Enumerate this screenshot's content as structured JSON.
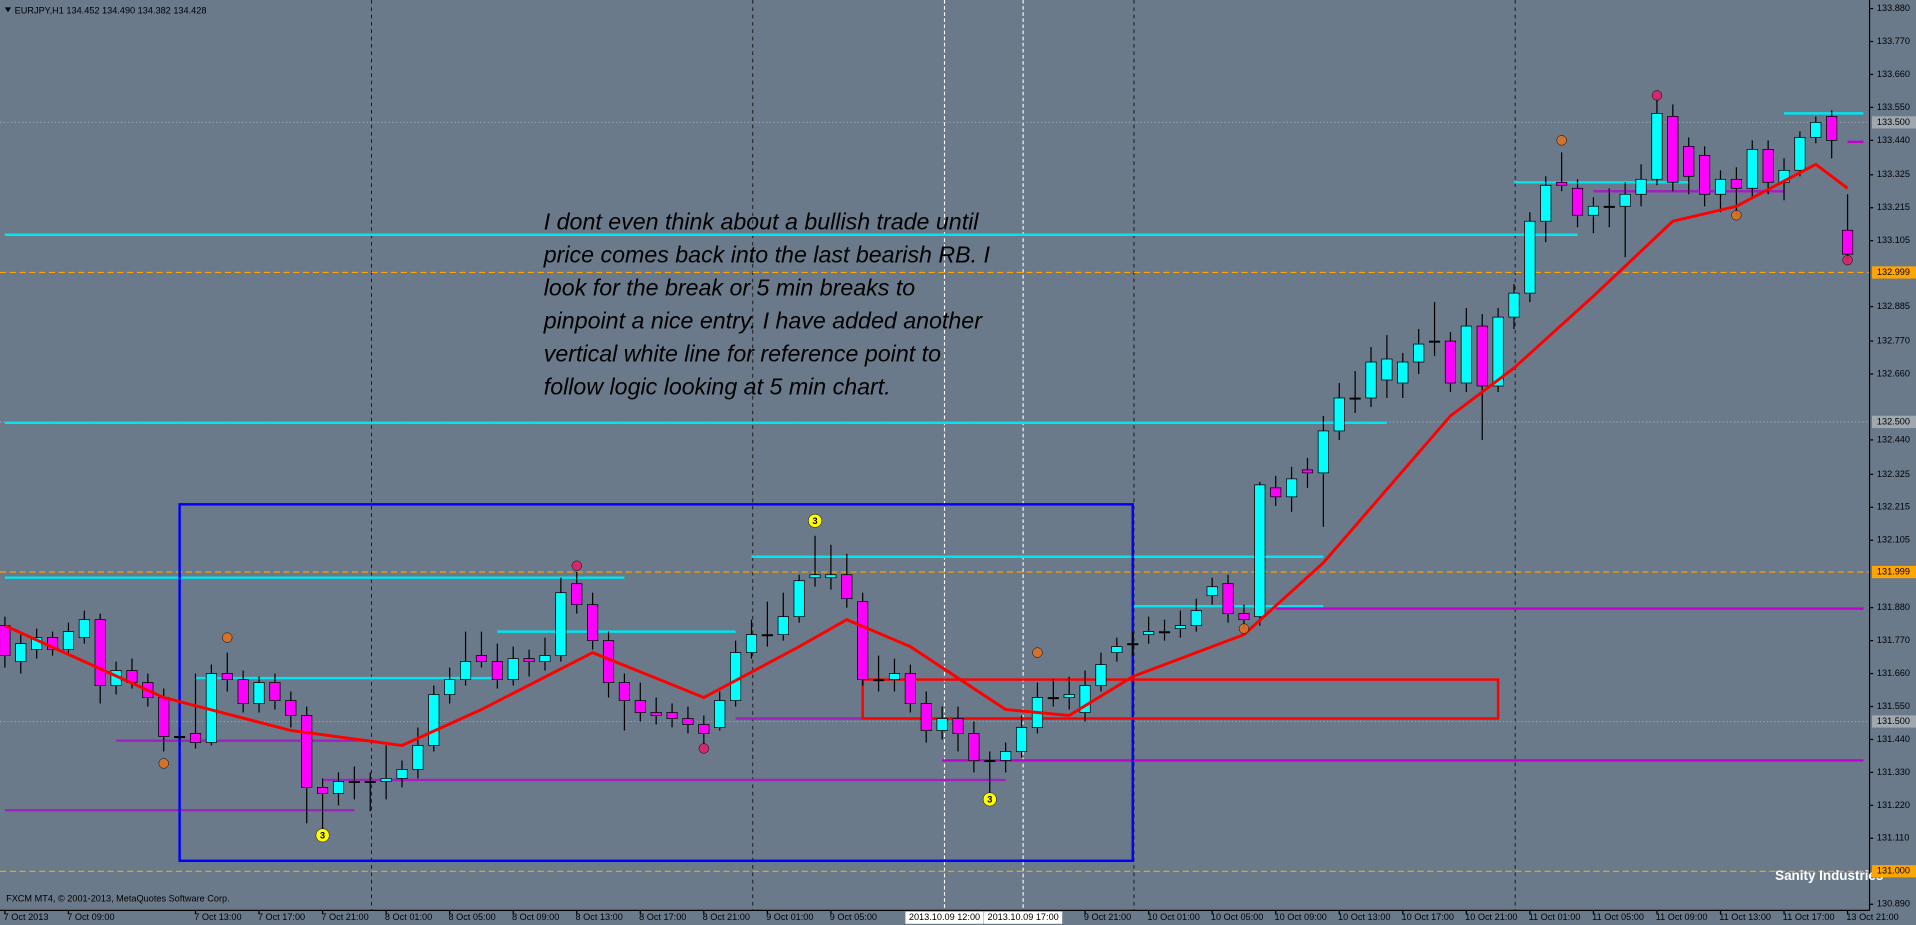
{
  "chart_data": {
    "type": "candlestick",
    "header": "EURJPY,H1 134.452 134.490 134.382 134.428",
    "footer": "FXCM MT4, © 2001-2013, MetaQuotes Software Corp.",
    "watermark": "Sanity Industries",
    "annotation": [
      "I dont even think about a bullish trade until",
      "price comes back into the last bearish RB. I",
      "look for the break or 5 min breaks to",
      "pinpoint a nice entry. I have added another",
      "vertical white line for reference point to",
      "follow logic looking at 5 min chart."
    ],
    "up_color": "#00ffff",
    "down_color": "#ff00ff",
    "xlim": [
      0,
      116
    ],
    "ylim": [
      130.89,
      133.88
    ],
    "yticks": [
      {
        "value": 133.88,
        "label": "133.880"
      },
      {
        "value": 133.77,
        "label": "133.770"
      },
      {
        "value": 133.66,
        "label": "133.660"
      },
      {
        "value": 133.55,
        "label": "133.550"
      },
      {
        "value": 133.44,
        "label": "133.440"
      },
      133.325,
      133.215,
      133.105,
      132.885,
      {
        "value": 132.77,
        "label": "132.770"
      },
      {
        "value": 132.66,
        "label": "132.660"
      },
      {
        "value": 132.44,
        "label": "132.440"
      },
      132.325,
      132.215,
      132.105,
      {
        "value": 131.88,
        "label": "131.880"
      },
      {
        "value": 131.77,
        "label": "131.770"
      },
      {
        "value": 131.66,
        "label": "131.660"
      },
      {
        "value": 131.55,
        "label": "131.550"
      },
      {
        "value": 131.44,
        "label": "131.440"
      },
      {
        "value": 131.33,
        "label": "131.330"
      },
      {
        "value": 131.22,
        "label": "131.220"
      },
      {
        "value": 131.11,
        "label": "131.110"
      },
      {
        "value": 130.89,
        "label": "130.890"
      }
    ],
    "xticks": [
      {
        "value": 0,
        "label": "7 Oct 2013"
      },
      {
        "value": 4,
        "label": "7 Oct 09:00"
      },
      {
        "value": 12,
        "label": "7 Oct 13:00"
      },
      {
        "value": 16,
        "label": "7 Oct 17:00"
      },
      {
        "value": 20,
        "label": "7 Oct 21:00"
      },
      {
        "value": 24,
        "label": "8 Oct 01:00"
      },
      {
        "value": 28,
        "label": "8 Oct 05:00"
      },
      {
        "value": 32,
        "label": "8 Oct 09:00"
      },
      {
        "value": 36,
        "label": "8 Oct 13:00"
      },
      {
        "value": 40,
        "label": "8 Oct 17:00"
      },
      {
        "value": 44,
        "label": "8 Oct 21:00"
      },
      {
        "value": 48,
        "label": "9 Oct 01:00"
      },
      {
        "value": 52,
        "label": "9 Oct 05:00"
      },
      {
        "value": 68,
        "label": "9 Oct 21:00"
      },
      {
        "value": 72,
        "label": "10 Oct 01:00"
      },
      {
        "value": 76,
        "label": "10 Oct 05:00"
      },
      {
        "value": 80,
        "label": "10 Oct 09:00"
      },
      {
        "value": 84,
        "label": "10 Oct 13:00"
      },
      {
        "value": 88,
        "label": "10 Oct 17:00"
      },
      {
        "value": 92,
        "label": "10 Oct 21:00"
      },
      {
        "value": 96,
        "label": "11 Oct 01:00"
      },
      {
        "value": 100,
        "label": "11 Oct 05:00"
      },
      {
        "value": 104,
        "label": "11 Oct 09:00"
      },
      {
        "value": 108,
        "label": "11 Oct 13:00"
      },
      {
        "value": 112,
        "label": "11 Oct 17:00"
      },
      {
        "value": 116,
        "label": "13 Oct 21:00"
      }
    ],
    "day_breaks": [
      23,
      47,
      71,
      95
    ],
    "reference_lines": [
      {
        "value": 59.15,
        "label": "2013.10.09 12:00"
      },
      {
        "value": 64.1,
        "label": "2013.10.09 17:00"
      }
    ],
    "candles": [
      [
        131.82,
        131.85,
        131.68,
        131.72
      ],
      [
        131.7,
        131.79,
        131.66,
        131.76
      ],
      [
        131.74,
        131.81,
        131.71,
        131.78
      ],
      [
        131.78,
        131.8,
        131.72,
        131.74
      ],
      [
        131.74,
        131.83,
        131.72,
        131.8
      ],
      [
        131.78,
        131.87,
        131.76,
        131.84
      ],
      [
        131.84,
        131.86,
        131.56,
        131.62
      ],
      [
        131.62,
        131.7,
        131.59,
        131.67
      ],
      [
        131.67,
        131.71,
        131.61,
        131.63
      ],
      [
        131.63,
        131.66,
        131.55,
        131.58
      ],
      [
        131.58,
        131.61,
        131.4,
        131.45
      ],
      [
        131.45,
        131.48,
        131.42,
        131.45
      ],
      [
        131.46,
        131.66,
        131.41,
        131.43
      ],
      [
        131.43,
        131.69,
        131.42,
        131.66
      ],
      [
        131.66,
        131.73,
        131.6,
        131.64
      ],
      [
        131.64,
        131.67,
        131.53,
        131.56
      ],
      [
        131.56,
        131.65,
        131.53,
        131.63
      ],
      [
        131.63,
        131.66,
        131.54,
        131.57
      ],
      [
        131.57,
        131.6,
        131.48,
        131.52
      ],
      [
        131.52,
        131.55,
        131.16,
        131.28
      ],
      [
        131.28,
        131.31,
        131.11,
        131.26
      ],
      [
        131.26,
        131.33,
        131.22,
        131.3
      ],
      [
        131.3,
        131.35,
        131.24,
        131.3
      ],
      [
        131.3,
        131.33,
        131.2,
        131.3
      ],
      [
        131.3,
        131.42,
        131.24,
        131.31
      ],
      [
        131.31,
        131.37,
        131.28,
        131.34
      ],
      [
        131.34,
        131.48,
        131.31,
        131.42
      ],
      [
        131.42,
        131.62,
        131.4,
        131.59
      ],
      [
        131.59,
        131.68,
        131.56,
        131.64
      ],
      [
        131.64,
        131.8,
        131.62,
        131.7
      ],
      [
        131.72,
        131.8,
        131.68,
        131.7
      ],
      [
        131.7,
        131.76,
        131.61,
        131.64
      ],
      [
        131.64,
        131.75,
        131.62,
        131.71
      ],
      [
        131.71,
        131.74,
        131.65,
        131.7
      ],
      [
        131.7,
        131.78,
        131.67,
        131.72
      ],
      [
        131.72,
        131.98,
        131.7,
        131.93
      ],
      [
        131.96,
        132.0,
        131.86,
        131.89
      ],
      [
        131.89,
        131.93,
        131.74,
        131.77
      ],
      [
        131.77,
        131.8,
        131.58,
        131.63
      ],
      [
        131.63,
        131.66,
        131.47,
        131.57
      ],
      [
        131.57,
        131.63,
        131.5,
        131.53
      ],
      [
        131.53,
        131.58,
        131.49,
        131.52
      ],
      [
        131.53,
        131.56,
        131.48,
        131.51
      ],
      [
        131.51,
        131.55,
        131.46,
        131.49
      ],
      [
        131.49,
        131.52,
        131.42,
        131.46
      ],
      [
        131.48,
        131.6,
        131.47,
        131.57
      ],
      [
        131.57,
        131.77,
        131.55,
        131.73
      ],
      [
        131.73,
        131.84,
        131.71,
        131.79
      ],
      [
        131.79,
        131.9,
        131.75,
        131.79
      ],
      [
        131.79,
        131.93,
        131.77,
        131.85
      ],
      [
        131.85,
        131.99,
        131.83,
        131.97
      ],
      [
        131.98,
        132.12,
        131.95,
        131.99
      ],
      [
        131.98,
        132.09,
        131.94,
        131.99
      ],
      [
        131.99,
        132.06,
        131.88,
        131.91
      ],
      [
        131.9,
        131.93,
        131.62,
        131.64
      ],
      [
        131.64,
        131.72,
        131.6,
        131.64
      ],
      [
        131.64,
        131.71,
        131.6,
        131.66
      ],
      [
        131.66,
        131.69,
        131.53,
        131.56
      ],
      [
        131.56,
        131.6,
        131.43,
        131.47
      ],
      [
        131.47,
        131.55,
        131.44,
        131.51
      ],
      [
        131.51,
        131.55,
        131.4,
        131.46
      ],
      [
        131.46,
        131.5,
        131.33,
        131.37
      ],
      [
        131.37,
        131.4,
        131.25,
        131.37
      ],
      [
        131.37,
        131.43,
        131.33,
        131.4
      ],
      [
        131.4,
        131.52,
        131.38,
        131.48
      ],
      [
        131.48,
        131.63,
        131.46,
        131.58
      ],
      [
        131.58,
        131.64,
        131.55,
        131.58
      ],
      [
        131.58,
        131.65,
        131.54,
        131.59
      ],
      [
        131.53,
        131.67,
        131.5,
        131.62
      ],
      [
        131.62,
        131.73,
        131.6,
        131.69
      ],
      [
        131.73,
        131.78,
        131.7,
        131.75
      ],
      [
        131.76,
        131.8,
        131.72,
        131.76
      ],
      [
        131.79,
        131.85,
        131.76,
        131.8
      ],
      [
        131.8,
        131.84,
        131.77,
        131.8
      ],
      [
        131.81,
        131.87,
        131.78,
        131.82
      ],
      [
        131.82,
        131.91,
        131.8,
        131.87
      ],
      [
        131.92,
        131.98,
        131.89,
        131.95
      ],
      [
        131.96,
        131.99,
        131.83,
        131.86
      ],
      [
        131.86,
        131.89,
        131.81,
        131.84
      ],
      [
        131.85,
        132.3,
        131.82,
        132.29
      ],
      [
        132.28,
        132.32,
        132.22,
        132.25
      ],
      [
        132.25,
        132.35,
        132.2,
        132.31
      ],
      [
        132.34,
        132.38,
        132.28,
        132.33
      ],
      [
        132.33,
        132.52,
        132.15,
        132.47
      ],
      [
        132.47,
        132.63,
        132.44,
        132.58
      ],
      [
        132.58,
        132.67,
        132.53,
        132.58
      ],
      [
        132.58,
        132.75,
        132.55,
        132.7
      ],
      [
        132.64,
        132.79,
        132.58,
        132.71
      ],
      [
        132.63,
        132.73,
        132.58,
        132.7
      ],
      [
        132.7,
        132.81,
        132.66,
        132.76
      ],
      [
        132.77,
        132.9,
        132.72,
        132.77
      ],
      [
        132.77,
        132.8,
        132.6,
        132.63
      ],
      [
        132.63,
        132.88,
        132.6,
        132.82
      ],
      [
        132.82,
        132.86,
        132.44,
        132.62
      ],
      [
        132.62,
        132.88,
        132.6,
        132.85
      ],
      [
        132.85,
        132.96,
        132.81,
        132.93
      ],
      [
        132.93,
        133.2,
        132.9,
        133.17
      ],
      [
        133.17,
        133.32,
        133.1,
        133.29
      ],
      [
        133.3,
        133.4,
        133.27,
        133.29
      ],
      [
        133.28,
        133.31,
        133.15,
        133.19
      ],
      [
        133.19,
        133.25,
        133.13,
        133.22
      ],
      [
        133.22,
        133.28,
        133.15,
        133.22
      ],
      [
        133.22,
        133.3,
        133.05,
        133.26
      ],
      [
        133.26,
        133.36,
        133.22,
        133.31
      ],
      [
        133.31,
        133.58,
        133.29,
        133.53
      ],
      [
        133.52,
        133.56,
        133.27,
        133.3
      ],
      [
        133.42,
        133.45,
        133.26,
        133.32
      ],
      [
        133.39,
        133.42,
        133.22,
        133.26
      ],
      [
        133.26,
        133.34,
        133.2,
        133.31
      ],
      [
        133.31,
        133.35,
        133.19,
        133.28
      ],
      [
        133.28,
        133.44,
        133.25,
        133.41
      ],
      [
        133.41,
        133.44,
        133.26,
        133.3
      ],
      [
        133.3,
        133.38,
        133.24,
        133.34
      ],
      [
        133.34,
        133.47,
        133.32,
        133.45
      ],
      [
        133.45,
        133.52,
        133.43,
        133.5
      ],
      [
        133.52,
        133.54,
        133.38,
        133.44
      ],
      [
        133.14,
        133.26,
        133.04,
        133.06
      ]
    ],
    "ma": {
      "color": "#ff0000",
      "x": [
        0,
        10,
        18,
        25,
        30,
        37,
        44,
        50,
        53,
        57,
        63,
        67,
        71,
        78,
        83,
        91,
        95,
        100,
        105,
        109,
        114,
        116
      ],
      "values": [
        131.82,
        131.58,
        131.47,
        131.42,
        131.54,
        131.73,
        131.58,
        131.75,
        131.84,
        131.75,
        131.54,
        131.52,
        131.65,
        131.79,
        132.03,
        132.52,
        132.68,
        132.92,
        133.17,
        133.22,
        133.36,
        133.28
      ]
    },
    "levels": [
      {
        "value": 133.125,
        "from": 0,
        "to": 99,
        "color": "#00e5ee"
      },
      {
        "value": 132.497,
        "from": 0,
        "to": 87,
        "color": "#00e5ee"
      },
      {
        "value": 131.98,
        "from": 0,
        "to": 39,
        "color": "#00e5ee"
      },
      {
        "value": 132.05,
        "from": 47,
        "to": 83,
        "color": "#00e5ee"
      },
      {
        "value": 131.645,
        "from": 12,
        "to": 31,
        "color": "#00e5ee"
      },
      {
        "value": 131.8,
        "from": 31,
        "to": 46,
        "color": "#00e5ee"
      },
      {
        "value": 131.885,
        "from": 71,
        "to": 83,
        "color": "#00e5ee"
      },
      {
        "value": 133.3,
        "from": 95,
        "to": 106,
        "color": "#00e5ee"
      },
      {
        "value": 133.53,
        "from": 112,
        "to": 117,
        "color": "#00e5ee"
      },
      {
        "value": 131.204,
        "from": 0,
        "to": 22,
        "color": "#a020c0"
      },
      {
        "value": 131.436,
        "from": 7,
        "to": 23,
        "color": "#a020c0"
      },
      {
        "value": 131.305,
        "from": 20,
        "to": 63,
        "color": "#a020c0"
      },
      {
        "value": 131.51,
        "from": 46,
        "to": 66,
        "color": "#a020c0"
      },
      {
        "value": 131.37,
        "from": 59,
        "to": 117,
        "color": "#c000d0"
      },
      {
        "value": 131.877,
        "from": 80,
        "to": 117,
        "color": "#c000d0"
      },
      {
        "value": 133.27,
        "from": 100,
        "to": 112,
        "color": "#a020c0"
      },
      {
        "value": 133.435,
        "from": 116,
        "to": 117,
        "color": "#c000d0"
      }
    ],
    "price_lines": [
      {
        "value": 132.999,
        "label": "132.999",
        "color": "#ffa500",
        "dashed": true
      },
      {
        "value": 131.999,
        "label": "131.999",
        "color": "#ffa500",
        "dashed": true
      },
      {
        "value": 131.0,
        "label": "131.000",
        "color": "#ffa500",
        "dashed": true
      },
      {
        "value": 133.5,
        "label": "133.500",
        "color": "#a0a8b0",
        "dashed": false
      },
      {
        "value": 132.5,
        "label": "132.500",
        "color": "#a0a8b0",
        "dashed": false
      },
      {
        "value": 131.5,
        "label": "131.500",
        "color": "#a0a8b0",
        "dashed": false
      }
    ],
    "boxes": [
      {
        "from": 11,
        "to": 71,
        "top": 132.225,
        "bottom": 131.035,
        "color": "#0000ff"
      },
      {
        "from": 54,
        "to": 94,
        "top": 131.64,
        "bottom": 131.51,
        "color": "#ff0000"
      }
    ],
    "markers": [
      {
        "x": 51,
        "value": 132.17,
        "color": "#ffff00",
        "label": "3"
      },
      {
        "x": 62,
        "value": 131.24,
        "color": "#ffff00",
        "label": "3"
      },
      {
        "x": 20,
        "value": 131.12,
        "color": "#ffff00",
        "label": "3"
      },
      {
        "x": 36,
        "value": 132.02,
        "color": "#e0206a"
      },
      {
        "x": 44,
        "value": 131.41,
        "color": "#e0206a"
      },
      {
        "x": 104,
        "value": 133.59,
        "color": "#e0206a"
      },
      {
        "x": 116,
        "value": 133.04,
        "color": "#e0206a"
      },
      {
        "x": 14,
        "value": 131.78,
        "color": "#e07020"
      },
      {
        "x": 10,
        "value": 131.36,
        "color": "#e07020"
      },
      {
        "x": 65,
        "value": 131.73,
        "color": "#e07020"
      },
      {
        "x": 98,
        "value": 133.44,
        "color": "#e07020"
      },
      {
        "x": 109,
        "value": 133.19,
        "color": "#e07020"
      },
      {
        "x": 78,
        "value": 131.81,
        "color": "#e07020"
      }
    ]
  }
}
